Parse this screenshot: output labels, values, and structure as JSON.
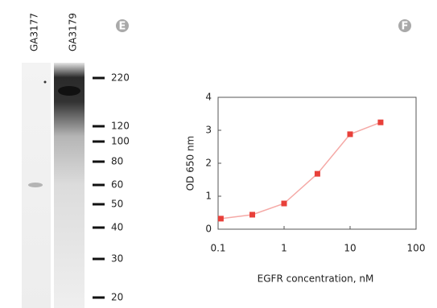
{
  "blot": {
    "panel": "E",
    "lanes": [
      "GA3177",
      "GA3179"
    ],
    "markers": [
      220,
      120,
      100,
      80,
      60,
      50,
      40,
      30,
      20
    ]
  },
  "chart_data": {
    "type": "line",
    "panel": "F",
    "xlabel": "EGFR concentration, nM",
    "ylabel": "OD 650 nm",
    "xscale": "log",
    "xlim": [
      0.1,
      100
    ],
    "xticks": [
      0.1,
      1,
      10,
      100
    ],
    "ylim": [
      0,
      4
    ],
    "yticks": [
      0,
      1,
      2,
      3,
      4
    ],
    "series": [
      {
        "color": "#e8403a",
        "x": [
          0.11,
          0.33,
          1,
          3.2,
          10,
          29
        ],
        "values": [
          0.32,
          0.44,
          0.78,
          1.68,
          2.88,
          3.24
        ]
      }
    ]
  }
}
